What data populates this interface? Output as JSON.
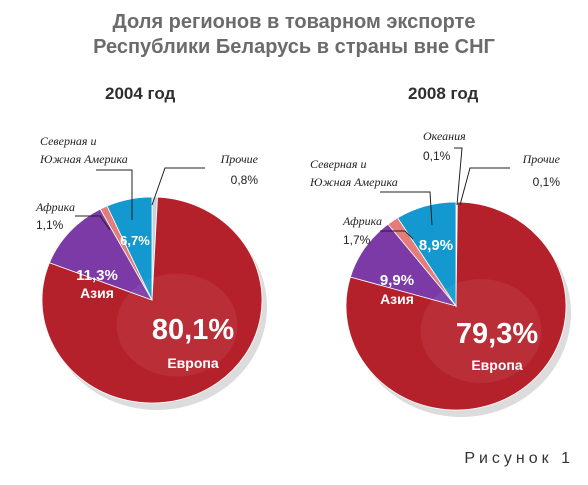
{
  "title_line1": "Доля регионов в товарном экспорте",
  "title_line2": "Республики Беларусь в страны вне СНГ",
  "figure_caption": "Рисунок 1",
  "colors": {
    "europe": "#b5212b",
    "asia": "#7b3aa6",
    "africa": "#e47c7a",
    "americas": "#1399cf",
    "oceania": "#1a3f7a",
    "other": "#c9d2dc"
  },
  "chart_data": [
    {
      "type": "pie",
      "title": "2004 год",
      "slices": [
        {
          "name": "Европа",
          "value": 80.1,
          "label": "80,1%"
        },
        {
          "name": "Азия",
          "value": 11.3,
          "label": "11,3%"
        },
        {
          "name": "Африка",
          "value": 1.1,
          "label": "1,1%"
        },
        {
          "name": "Северная и Южная Америка",
          "value": 6.7,
          "label": "6,7%"
        },
        {
          "name": "Прочие",
          "value": 0.8,
          "label": "0,8%"
        }
      ]
    },
    {
      "type": "pie",
      "title": "2008 год",
      "slices": [
        {
          "name": "Европа",
          "value": 79.3,
          "label": "79,3%"
        },
        {
          "name": "Азия",
          "value": 9.9,
          "label": "9,9%"
        },
        {
          "name": "Африка",
          "value": 1.7,
          "label": "1,7%"
        },
        {
          "name": "Северная и Южная Америка",
          "value": 8.9,
          "label": "8,9%"
        },
        {
          "name": "Океания",
          "value": 0.1,
          "label": "0,1%"
        },
        {
          "name": "Прочие",
          "value": 0.1,
          "label": "0,1%"
        }
      ]
    }
  ]
}
